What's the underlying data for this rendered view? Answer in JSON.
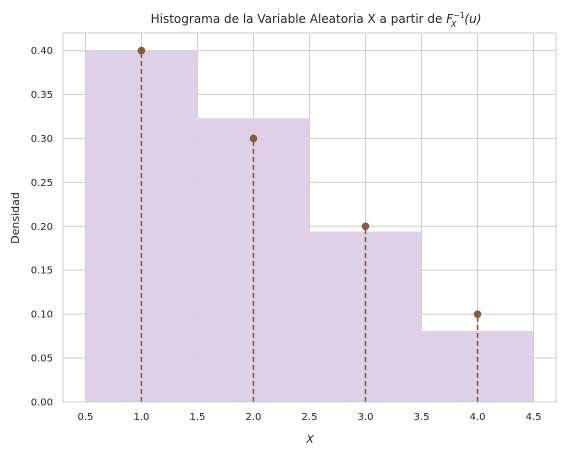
{
  "chart_data": {
    "type": "bar",
    "title": "Histograma de la Variable Aleatoria X a partir de",
    "title_math": {
      "base": "F",
      "sub": "X",
      "sup": "−1",
      "arg": "(u)"
    },
    "xlabel": "X",
    "ylabel": "Densidad",
    "xlim": [
      0.3,
      4.7
    ],
    "ylim": [
      0.0,
      0.42
    ],
    "xticks": [
      "0.5",
      "1.0",
      "1.5",
      "2.0",
      "2.5",
      "3.0",
      "3.5",
      "4.0",
      "4.5"
    ],
    "yticks": [
      "0.00",
      "0.05",
      "0.10",
      "0.15",
      "0.20",
      "0.25",
      "0.30",
      "0.35",
      "0.40"
    ],
    "grid": true,
    "histogram": {
      "bins": [
        [
          0.5,
          1.5
        ],
        [
          1.5,
          2.5
        ],
        [
          2.5,
          3.5
        ],
        [
          3.5,
          4.5
        ]
      ],
      "values": [
        0.4,
        0.323,
        0.194,
        0.081
      ],
      "color": "#dccfe6"
    },
    "stems": {
      "x": [
        1,
        2,
        3,
        4
      ],
      "values": [
        0.4,
        0.3,
        0.2,
        0.1
      ],
      "color": "#8b5a3c"
    }
  }
}
